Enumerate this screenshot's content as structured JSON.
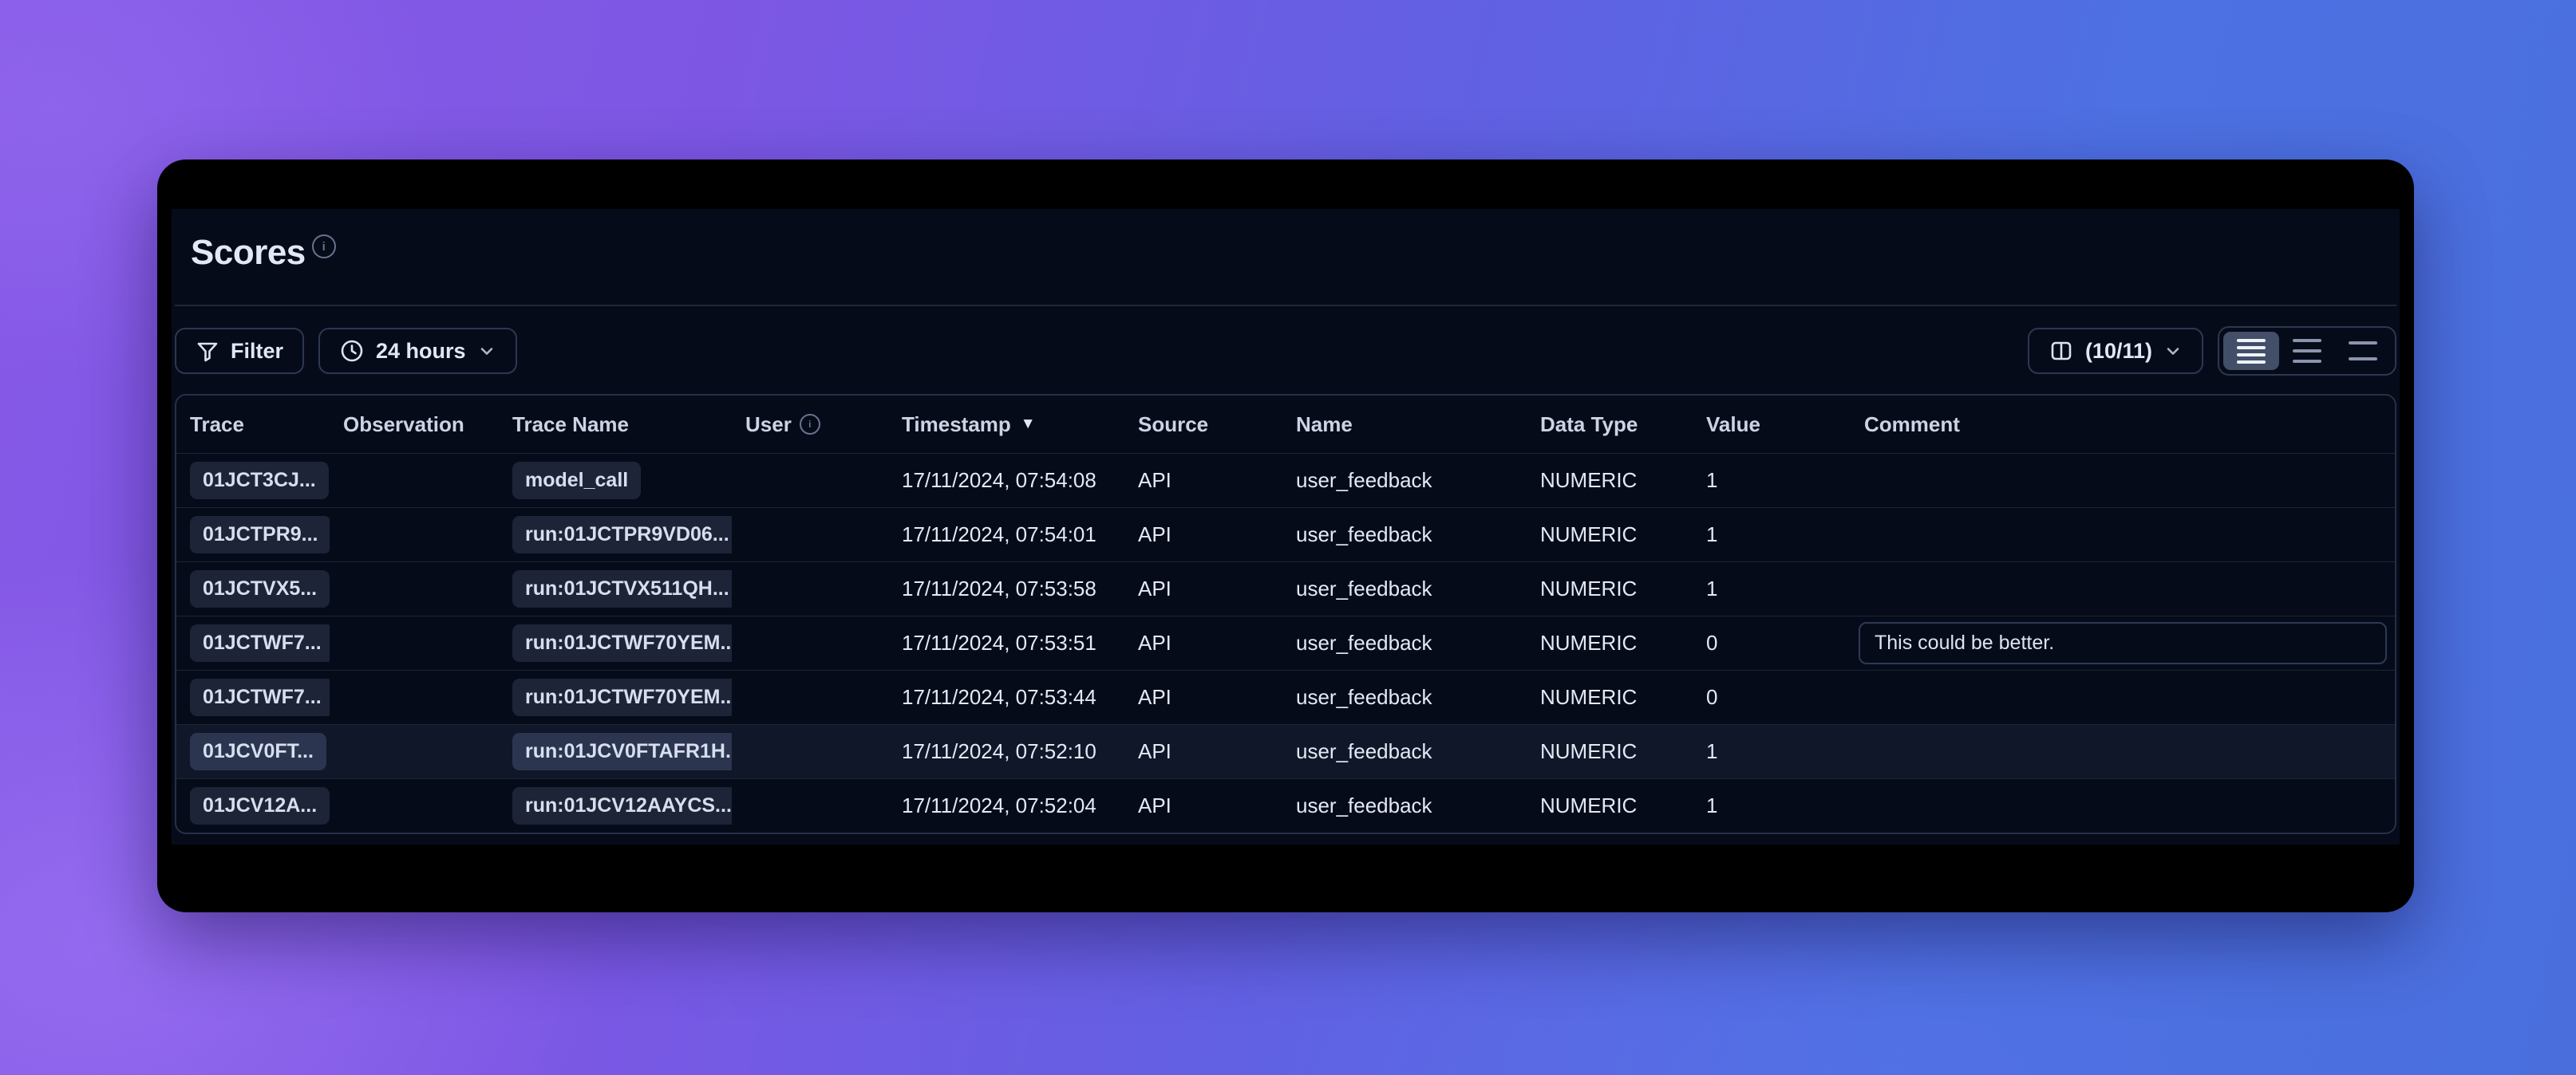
{
  "page": {
    "title": "Scores"
  },
  "toolbar": {
    "filter_label": "Filter",
    "time_range_label": "24 hours",
    "columns_label": "(10/11)",
    "row_height_options": [
      "compact",
      "medium",
      "tall"
    ],
    "row_height_selected": "compact"
  },
  "table": {
    "columns": [
      {
        "key": "trace",
        "label": "Trace"
      },
      {
        "key": "observation",
        "label": "Observation"
      },
      {
        "key": "trace_name",
        "label": "Trace Name"
      },
      {
        "key": "user",
        "label": "User",
        "info": true
      },
      {
        "key": "timestamp",
        "label": "Timestamp",
        "sorted": "desc"
      },
      {
        "key": "source",
        "label": "Source"
      },
      {
        "key": "name",
        "label": "Name"
      },
      {
        "key": "data_type",
        "label": "Data Type"
      },
      {
        "key": "value",
        "label": "Value"
      },
      {
        "key": "comment",
        "label": "Comment"
      }
    ],
    "sort_indicator": "▼",
    "rows": [
      {
        "trace": "01JCT3CJ...",
        "observation": "",
        "trace_name": "model_call",
        "user": "",
        "timestamp": "17/11/2024, 07:54:08",
        "source": "API",
        "name": "user_feedback",
        "data_type": "NUMERIC",
        "value": "1",
        "comment": "",
        "highlighted": false
      },
      {
        "trace": "01JCTPR9...",
        "observation": "",
        "trace_name": "run:01JCTPR9VD06...",
        "user": "",
        "timestamp": "17/11/2024, 07:54:01",
        "source": "API",
        "name": "user_feedback",
        "data_type": "NUMERIC",
        "value": "1",
        "comment": "",
        "highlighted": false
      },
      {
        "trace": "01JCTVX5...",
        "observation": "",
        "trace_name": "run:01JCTVX511QH...",
        "user": "",
        "timestamp": "17/11/2024, 07:53:58",
        "source": "API",
        "name": "user_feedback",
        "data_type": "NUMERIC",
        "value": "1",
        "comment": "",
        "highlighted": false
      },
      {
        "trace": "01JCTWF7...",
        "observation": "",
        "trace_name": "run:01JCTWF70YEM...",
        "user": "",
        "timestamp": "17/11/2024, 07:53:51",
        "source": "API",
        "name": "user_feedback",
        "data_type": "NUMERIC",
        "value": "0",
        "comment": "This could be better.",
        "highlighted": false
      },
      {
        "trace": "01JCTWF7...",
        "observation": "",
        "trace_name": "run:01JCTWF70YEM...",
        "user": "",
        "timestamp": "17/11/2024, 07:53:44",
        "source": "API",
        "name": "user_feedback",
        "data_type": "NUMERIC",
        "value": "0",
        "comment": "",
        "highlighted": false
      },
      {
        "trace": "01JCV0FT...",
        "observation": "",
        "trace_name": "run:01JCV0FTAFR1H...",
        "user": "",
        "timestamp": "17/11/2024, 07:52:10",
        "source": "API",
        "name": "user_feedback",
        "data_type": "NUMERIC",
        "value": "1",
        "comment": "",
        "highlighted": true
      },
      {
        "trace": "01JCV12A...",
        "observation": "",
        "trace_name": "run:01JCV12AAYCS...",
        "user": "",
        "timestamp": "17/11/2024, 07:52:04",
        "source": "API",
        "name": "user_feedback",
        "data_type": "NUMERIC",
        "value": "1",
        "comment": "",
        "highlighted": false
      }
    ]
  },
  "colors": {
    "background_gradient_left": "#8156e2",
    "background_gradient_right": "#4a72e2",
    "window_background": "#000000",
    "content_background": "#060b1a",
    "table_border": "#253047",
    "badge_background": "#1d2437",
    "row_highlight": "#101729",
    "segmented_selected": "#434e68"
  }
}
